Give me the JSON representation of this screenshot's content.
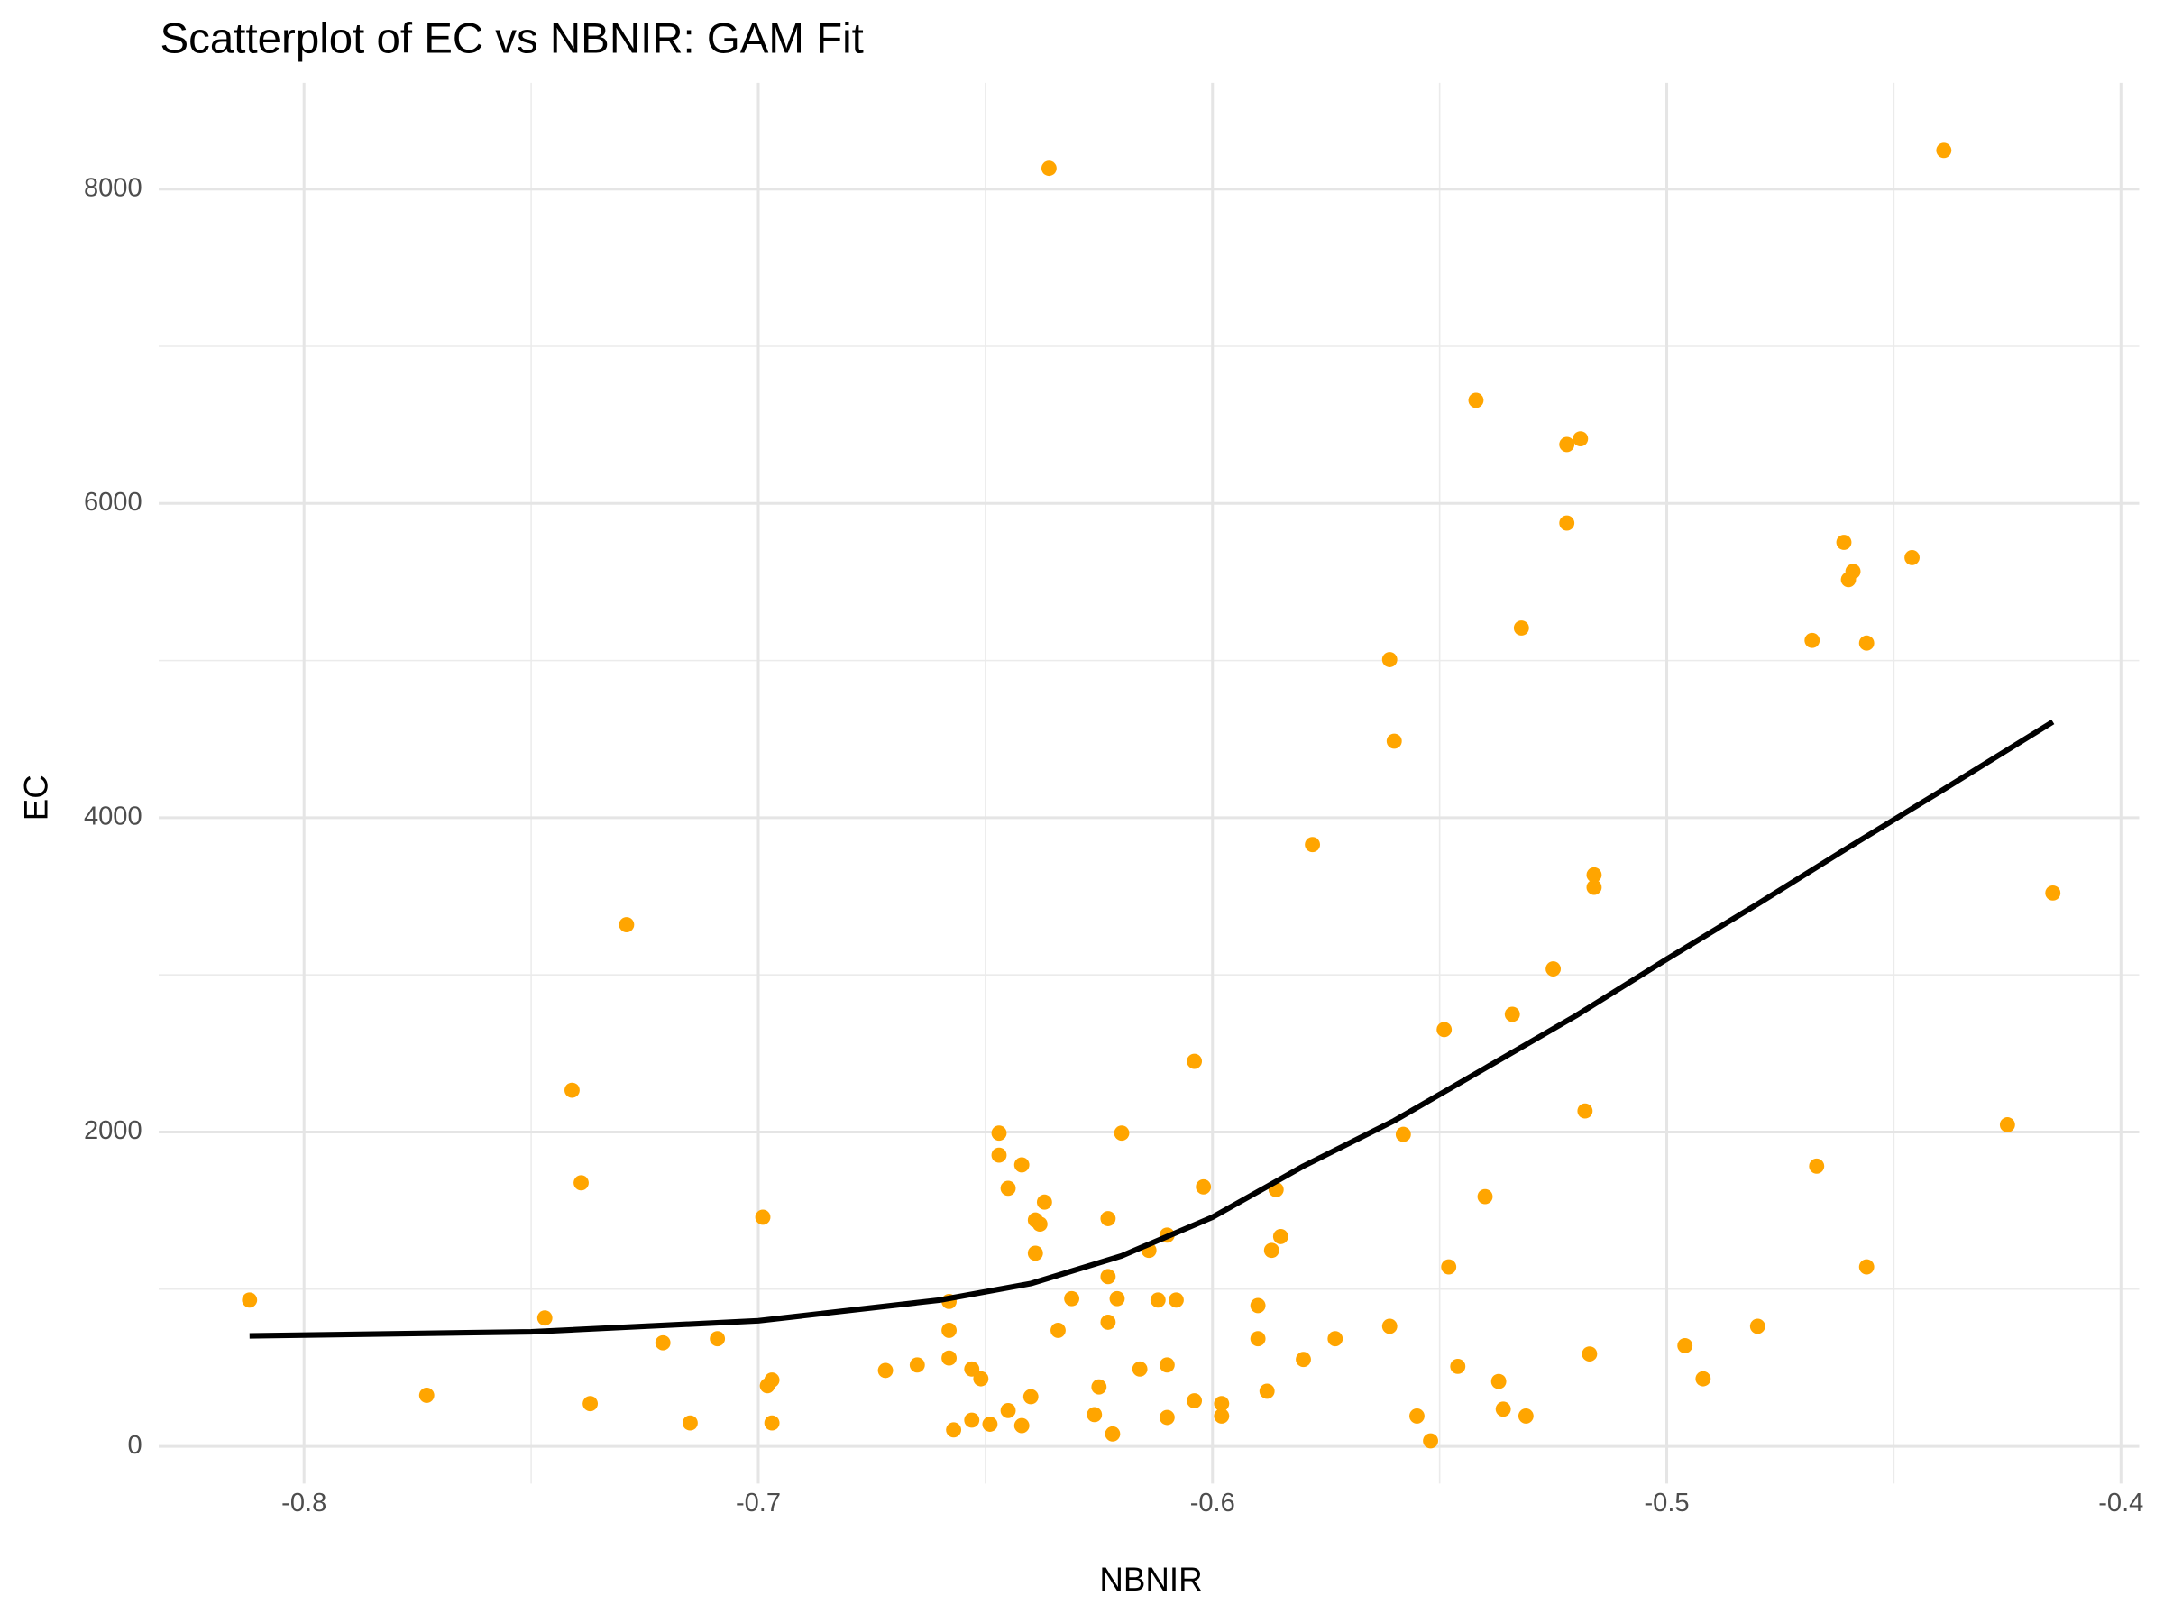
{
  "chart_data": {
    "type": "scatter",
    "title": "Scatterplot of EC vs NBNIR: GAM Fit",
    "x_label": "NBNIR",
    "y_label": "EC",
    "xlim": [
      -0.832,
      -0.396
    ],
    "ylim": [
      -237,
      8676
    ],
    "xticks": [
      -0.8,
      -0.7,
      -0.6,
      -0.5,
      -0.4
    ],
    "yticks": [
      0,
      2000,
      4000,
      6000,
      8000
    ],
    "grid": true,
    "points": {
      "color": "#FFA500",
      "x": [
        -0.812,
        -0.773,
        -0.747,
        -0.741,
        -0.739,
        -0.737,
        -0.729,
        -0.721,
        -0.715,
        -0.709,
        -0.699,
        -0.698,
        -0.697,
        -0.697,
        -0.672,
        -0.665,
        -0.658,
        -0.658,
        -0.658,
        -0.657,
        -0.653,
        -0.653,
        -0.651,
        -0.649,
        -0.647,
        -0.647,
        -0.645,
        -0.645,
        -0.642,
        -0.642,
        -0.64,
        -0.639,
        -0.639,
        -0.638,
        -0.637,
        -0.636,
        -0.634,
        -0.631,
        -0.626,
        -0.625,
        -0.623,
        -0.623,
        -0.623,
        -0.622,
        -0.621,
        -0.62,
        -0.616,
        -0.614,
        -0.612,
        -0.61,
        -0.61,
        -0.61,
        -0.608,
        -0.604,
        -0.604,
        -0.602,
        -0.598,
        -0.598,
        -0.59,
        -0.59,
        -0.588,
        -0.587,
        -0.586,
        -0.585,
        -0.58,
        -0.578,
        -0.573,
        -0.561,
        -0.561,
        -0.56,
        -0.558,
        -0.555,
        -0.552,
        -0.549,
        -0.548,
        -0.546,
        -0.542,
        -0.54,
        -0.537,
        -0.536,
        -0.534,
        -0.532,
        -0.531,
        -0.525,
        -0.522,
        -0.522,
        -0.519,
        -0.518,
        -0.517,
        -0.516,
        -0.516,
        -0.496,
        -0.492,
        -0.48,
        -0.468,
        -0.467,
        -0.461,
        -0.46,
        -0.459,
        -0.456,
        -0.456,
        -0.446,
        -0.439,
        -0.425,
        -0.415
      ],
      "values": [
        931,
        325,
        817,
        2266,
        1677,
        272,
        3319,
        659,
        149,
        685,
        1458,
        386,
        422,
        149,
        483,
        518,
        922,
        738,
        562,
        105,
        492,
        167,
        430,
        141,
        1993,
        1853,
        228,
        1642,
        1791,
        132,
        316,
        1229,
        1440,
        1414,
        1554,
        8132,
        738,
        940,
        202,
        378,
        1449,
        1080,
        790,
        79,
        940,
        1993,
        492,
        1247,
        931,
        518,
        184,
        1344,
        931,
        2450,
        290,
        1651,
        193,
        272,
        685,
        896,
        351,
        1247,
        1633,
        1335,
        553,
        3829,
        685,
        5006,
        764,
        4487,
        1985,
        193,
        35,
        2652,
        1142,
        509,
        6656,
        1589,
        413,
        237,
        2749,
        5207,
        193,
        3038,
        6375,
        5875,
        6411,
        2134,
        588,
        3636,
        3557,
        641,
        430,
        764,
        5128,
        1783,
        5752,
        5515,
        5567,
        5111,
        1142,
        5655,
        8246,
        2046,
        3521
      ]
    },
    "fit": {
      "color": "#000000",
      "x": [
        -0.812,
        -0.75,
        -0.7,
        -0.66,
        -0.64,
        -0.62,
        -0.6,
        -0.58,
        -0.56,
        -0.54,
        -0.52,
        -0.5,
        -0.48,
        -0.46,
        -0.44,
        -0.415
      ],
      "values": [
        703,
        729,
        799,
        931,
        1036,
        1212,
        1458,
        1783,
        2072,
        2406,
        2740,
        3100,
        3451,
        3811,
        4163,
        4610
      ]
    }
  }
}
